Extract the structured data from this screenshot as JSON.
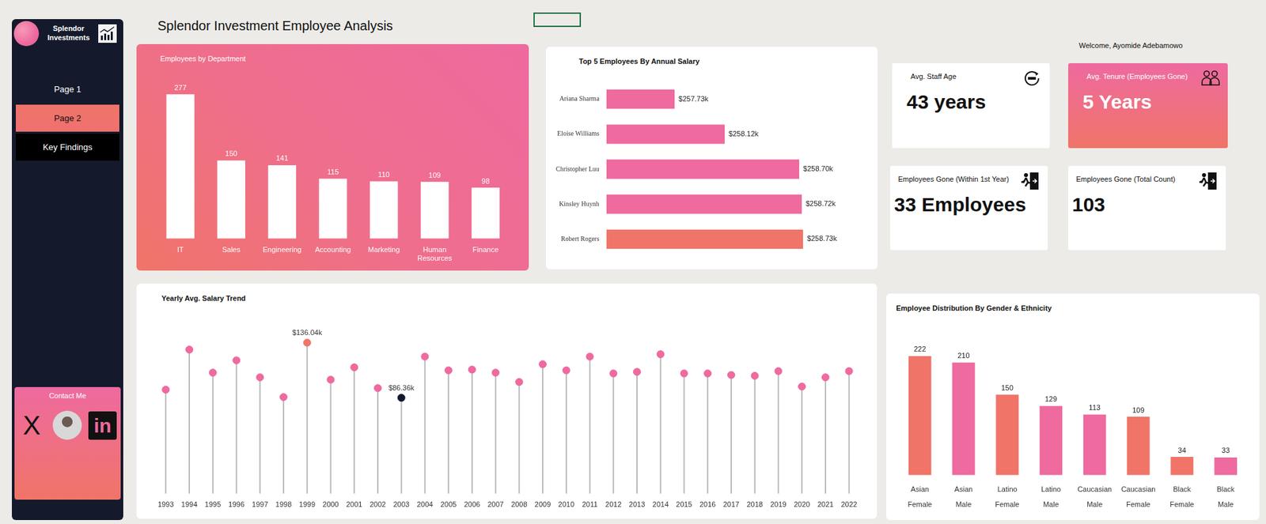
{
  "header": {
    "title": "Splendor Investment Employee Analysis",
    "welcome": "Welcome, Ayomide Adebamowo"
  },
  "sidebar": {
    "brand": "Splendor Investments",
    "pages": [
      "Page 1",
      "Page 2",
      "Key Findings"
    ],
    "active_page": "Page 2",
    "contact": {
      "title": "Contact Me",
      "icons": [
        "X",
        "in"
      ]
    }
  },
  "kpis": [
    {
      "label": "Avg. Staff Age",
      "value": "43 years"
    },
    {
      "label": "Avg. Tenure (Employees Gone)",
      "value": "5 Years"
    },
    {
      "label": "Employees Gone (Within 1st Year)",
      "value": "33 Employees"
    },
    {
      "label": "Employees Gone (Total Count)",
      "value": "103"
    }
  ],
  "chart_data": [
    {
      "type": "bar",
      "title": "Employees by Department",
      "categories": [
        "IT",
        "Sales",
        "Engineering",
        "Accounting",
        "Marketing",
        "Human Resources",
        "Finance"
      ],
      "values": [
        277,
        150,
        141,
        115,
        110,
        109,
        98
      ],
      "color": "#ffffff",
      "ylim": [
        0,
        300
      ],
      "grid": false,
      "data_labels": true,
      "tick_labels": "x"
    },
    {
      "type": "bar",
      "orientation": "horizontal",
      "title": "Top 5 Employees By Annual Salary",
      "categories": [
        "Ariana Sharma",
        "Eloise Williams",
        "Christopher Luu",
        "Kinsley Huynh",
        "Robert Rogers"
      ],
      "values": [
        257.73,
        258.12,
        258.7,
        258.72,
        258.73
      ],
      "value_labels": [
        "$257.73k",
        "$258.12k",
        "$258.70k",
        "$258.72k",
        "$258.73k"
      ],
      "colors": [
        "#ee6a9f",
        "#ee6a9f",
        "#ee6a9f",
        "#ee6a9f",
        "#f07468"
      ],
      "xlim": [
        257.2,
        258.9
      ],
      "grid": false,
      "data_labels": true,
      "tick_labels": "y"
    },
    {
      "type": "lollipop",
      "title": "Yearly Avg. Salary Trend",
      "categories": [
        "1993",
        "1994",
        "1995",
        "1996",
        "1997",
        "1998",
        "1999",
        "2000",
        "2001",
        "2002",
        "2003",
        "2004",
        "2005",
        "2006",
        "2007",
        "2008",
        "2009",
        "2010",
        "2011",
        "2012",
        "2013",
        "2014",
        "2015",
        "2016",
        "2017",
        "2018",
        "2019",
        "2020",
        "2021",
        "2022"
      ],
      "values": [
        93.7,
        129.8,
        109.0,
        120.1,
        104.8,
        87.0,
        136.04,
        102.7,
        113.8,
        95.1,
        86.36,
        123.5,
        111.1,
        111.8,
        109.0,
        100.6,
        116.6,
        111.1,
        123.5,
        108.3,
        109.7,
        125.6,
        108.3,
        108.3,
        106.9,
        106.2,
        110.4,
        96.5,
        104.8,
        110.4
      ],
      "value_labels": [
        null,
        null,
        null,
        null,
        null,
        null,
        "$136.04k",
        null,
        null,
        null,
        "$86.36k",
        null,
        null,
        null,
        null,
        null,
        null,
        null,
        null,
        null,
        null,
        null,
        null,
        null,
        null,
        null,
        null,
        null,
        null,
        null
      ],
      "colors": [
        "#ee6a9f",
        "#ee6a9f",
        "#ee6a9f",
        "#ee6a9f",
        "#ee6a9f",
        "#ee6a9f",
        "#f07468",
        "#ee6a9f",
        "#ee6a9f",
        "#ee6a9f",
        "#141a2b",
        "#ee6a9f",
        "#ee6a9f",
        "#ee6a9f",
        "#ee6a9f",
        "#ee6a9f",
        "#ee6a9f",
        "#ee6a9f",
        "#ee6a9f",
        "#ee6a9f",
        "#ee6a9f",
        "#ee6a9f",
        "#ee6a9f",
        "#ee6a9f",
        "#ee6a9f",
        "#ee6a9f",
        "#ee6a9f",
        "#ee6a9f",
        "#ee6a9f",
        "#ee6a9f"
      ],
      "ylim": [
        0,
        150
      ],
      "grid": false,
      "tick_labels": "x"
    },
    {
      "type": "bar",
      "title": "Employee Distribution By Gender & Ethnicity",
      "categories": [
        "Asian Female",
        "Asian Male",
        "Latino Female",
        "Latino Male",
        "Caucasian Male",
        "Caucasian Female",
        "Black Female",
        "Black Male"
      ],
      "values": [
        222,
        210,
        150,
        129,
        113,
        109,
        34,
        33
      ],
      "colors": [
        "#f07468",
        "#ee6a9f",
        "#f07468",
        "#ee6a9f",
        "#ee6a9f",
        "#f07468",
        "#f07468",
        "#ee6a9f"
      ],
      "ylim": [
        0,
        260
      ],
      "grid": false,
      "data_labels": true,
      "tick_labels": "x"
    }
  ]
}
